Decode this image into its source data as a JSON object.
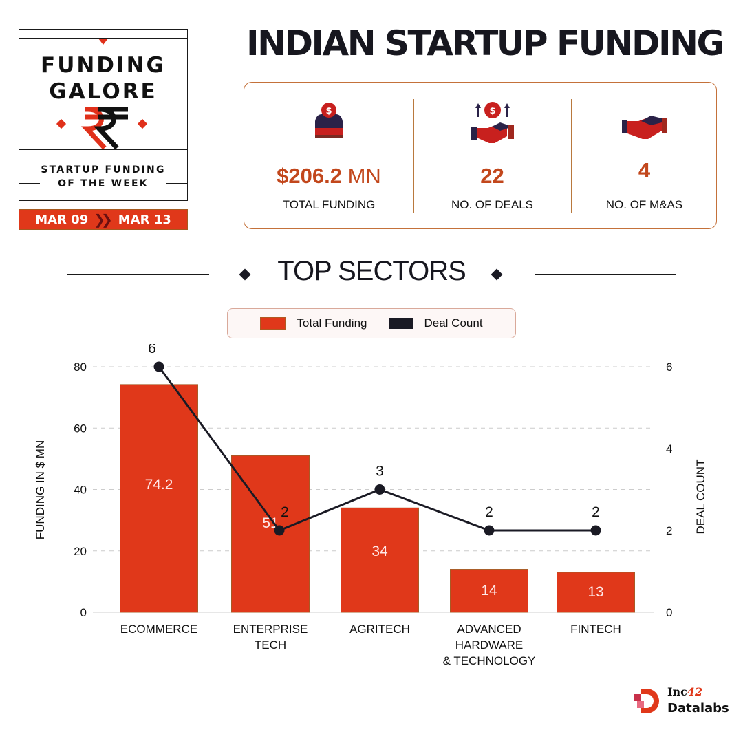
{
  "badge": {
    "title_line1": "FUNDING",
    "title_line2": "GALORE",
    "subtitle_line1": "STARTUP FUNDING",
    "subtitle_line2": "OF THE WEEK",
    "icon": "rupee-icon",
    "date_start": "MAR 09",
    "date_separator_icon": "double-chevron-right-icon",
    "date_end": "MAR 13"
  },
  "header": {
    "title": "INDIAN STARTUP FUNDING"
  },
  "stats": [
    {
      "icon": "money-box-icon",
      "value_prefix": "$206.2",
      "value_unit": " MN",
      "label": "TOTAL FUNDING"
    },
    {
      "icon": "handshake-coin-icon",
      "value": "22",
      "label": "NO. OF DEALS"
    },
    {
      "icon": "handshake-icon",
      "value": "4",
      "label": "NO. OF M&AS"
    }
  ],
  "section": {
    "title": "TOP SECTORS"
  },
  "colors": {
    "accent": "#E0381A",
    "dark": "#1A1A24",
    "value_text": "#C2471C",
    "card_border": "#C4713A"
  },
  "chart_data": {
    "type": "bar",
    "title": "TOP SECTORS",
    "categories": [
      "ECOMMERCE",
      "ENTERPRISE TECH",
      "AGRITECH",
      "ADVANCED HARDWARE & TECHNOLOGY",
      "FINTECH"
    ],
    "category_lines": [
      [
        "ECOMMERCE"
      ],
      [
        "ENTERPRISE",
        "TECH"
      ],
      [
        "AGRITECH"
      ],
      [
        "ADVANCED",
        "HARDWARE",
        "& TECHNOLOGY"
      ],
      [
        "FINTECH"
      ]
    ],
    "series": [
      {
        "name": "Total Funding",
        "type": "bar",
        "axis": "left",
        "color": "#E0381A",
        "values": [
          74.2,
          51,
          34,
          14,
          13
        ],
        "labels": [
          "74.2",
          "51",
          "34",
          "14",
          "13"
        ]
      },
      {
        "name": "Deal Count",
        "type": "line",
        "axis": "right",
        "color": "#1A1A24",
        "values": [
          6,
          2,
          3,
          2,
          2
        ],
        "labels": [
          "6",
          "2",
          "3",
          "2",
          "2"
        ]
      }
    ],
    "xlabel": "",
    "ylabel": "FUNDING IN $ MN",
    "y2label": "DEAL COUNT",
    "ylim": [
      0,
      80
    ],
    "y2lim": [
      0,
      6
    ],
    "yticks": [
      "0",
      "20",
      "40",
      "60",
      "80"
    ],
    "y2ticks": [
      "0",
      "2",
      "4",
      "6"
    ],
    "grid": "dashed horizontal",
    "legend": [
      "Total Funding",
      "Deal Count"
    ],
    "legend_position": "top"
  },
  "footer": {
    "logo_line1": "Inc",
    "logo_line1_suffix": "42",
    "logo_line2": "Datalabs"
  }
}
